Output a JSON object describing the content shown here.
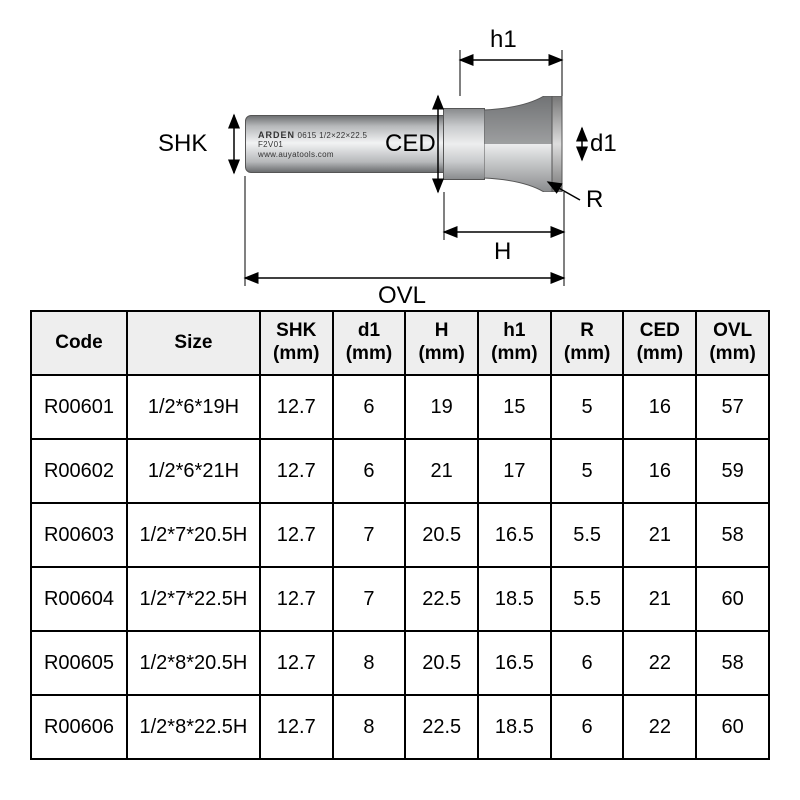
{
  "diagram": {
    "labels": {
      "shk": "SHK",
      "ced": "CED",
      "h1": "h1",
      "d1": "d1",
      "r": "R",
      "h": "H",
      "ovl": "OVL"
    },
    "etch": {
      "brand": "ARDEN",
      "spec": "0615 1/2×22×22.5",
      "code": "F2V01",
      "url": "www.auyatools.com"
    },
    "label_fontsize": 24,
    "colors": {
      "text": "#000000",
      "steel_light": "#f2f3f4",
      "steel_mid": "#b6b8ba",
      "steel_dark": "#707274",
      "outline": "#555555"
    }
  },
  "table": {
    "columns": [
      "Code",
      "Size",
      "SHK (mm)",
      "d1 (mm)",
      "H (mm)",
      "h1 (mm)",
      "R (mm)",
      "CED (mm)",
      "OVL (mm)"
    ],
    "rows": [
      [
        "R00601",
        "1/2*6*19H",
        "12.7",
        "6",
        "19",
        "15",
        "5",
        "16",
        "57"
      ],
      [
        "R00602",
        "1/2*6*21H",
        "12.7",
        "6",
        "21",
        "17",
        "5",
        "16",
        "59"
      ],
      [
        "R00603",
        "1/2*7*20.5H",
        "12.7",
        "7",
        "20.5",
        "16.5",
        "5.5",
        "21",
        "58"
      ],
      [
        "R00604",
        "1/2*7*22.5H",
        "12.7",
        "7",
        "22.5",
        "18.5",
        "5.5",
        "21",
        "60"
      ],
      [
        "R00605",
        "1/2*8*20.5H",
        "12.7",
        "8",
        "20.5",
        "16.5",
        "6",
        "22",
        "58"
      ],
      [
        "R00606",
        "1/2*8*22.5H",
        "12.7",
        "8",
        "22.5",
        "18.5",
        "6",
        "22",
        "60"
      ]
    ],
    "header_bg": "#eeeeee",
    "row_bg": "#ffffff",
    "border_color": "#000000",
    "font_size_header": 19,
    "font_size_cell": 20,
    "col_widths_pct": [
      13,
      18,
      9.85,
      9.85,
      9.85,
      9.85,
      9.85,
      9.85,
      9.85
    ]
  }
}
